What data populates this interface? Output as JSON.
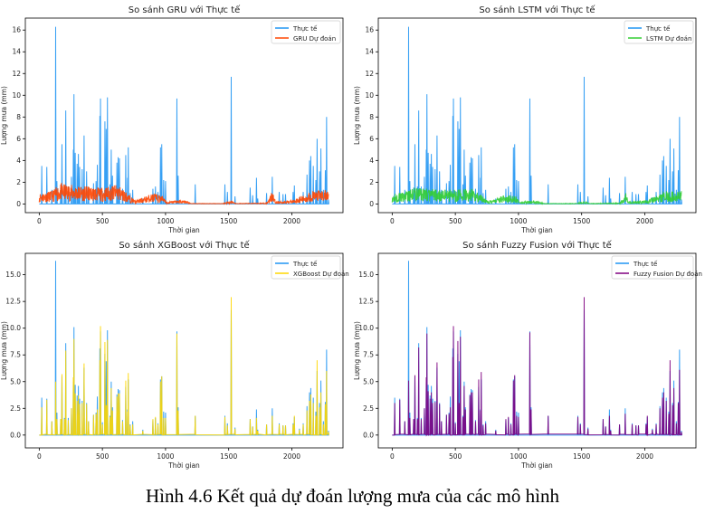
{
  "caption": "Hình 4.6 Kết quả dự đoán lượng mưa của các mô hình",
  "colors": {
    "actual": "#2196f3",
    "gru": "#ff4500",
    "lstm": "#32cd32",
    "xgboost": "#ffd700",
    "fuzzy": "#800080"
  },
  "chart_data": [
    {
      "type": "line",
      "title": "So sánh GRU với Thực tế",
      "xlabel": "Thời gian",
      "ylabel": "Lượng mưa (mm)",
      "xlim": [
        -110,
        2405
      ],
      "ylim": [
        -0.8,
        17.1
      ],
      "xticks": [
        0,
        500,
        1000,
        1500,
        2000
      ],
      "xtick_labels": [
        "0",
        "500",
        "1000",
        "1500",
        "2000"
      ],
      "yticks": [
        0,
        2,
        4,
        6,
        8,
        10,
        12,
        14,
        16
      ],
      "ytick_labels": [
        "0",
        "2",
        "4",
        "6",
        "8",
        "10",
        "12",
        "14",
        "16"
      ],
      "legend": [
        "Thực tế",
        "GRU Dự đoán"
      ],
      "legend_position": "top-right",
      "model": "gru",
      "pred_kind": "envelope"
    },
    {
      "type": "line",
      "title": "So sánh LSTM với Thực tế",
      "xlabel": "Thời gian",
      "ylabel": "Lượng mưa (mm)",
      "xlim": [
        -110,
        2405
      ],
      "ylim": [
        -0.8,
        17.1
      ],
      "xticks": [
        0,
        500,
        1000,
        1500,
        2000
      ],
      "xtick_labels": [
        "0",
        "500",
        "1000",
        "1500",
        "2000"
      ],
      "yticks": [
        0,
        2,
        4,
        6,
        8,
        10,
        12,
        14,
        16
      ],
      "ytick_labels": [
        "0",
        "2",
        "4",
        "6",
        "8",
        "10",
        "12",
        "14",
        "16"
      ],
      "legend": [
        "Thực tế",
        "LSTM Dự đoán"
      ],
      "legend_position": "top-right",
      "model": "lstm",
      "pred_kind": "envelope"
    },
    {
      "type": "line",
      "title": "So sánh XGBoost với Thực tế",
      "xlabel": "Thời gian",
      "ylabel": "Lượng mưa (mm)",
      "xlim": [
        -110,
        2405
      ],
      "ylim": [
        -1.2,
        17.0
      ],
      "xticks": [
        0,
        500,
        1000,
        1500,
        2000
      ],
      "xtick_labels": [
        "0",
        "500",
        "1000",
        "1500",
        "2000"
      ],
      "yticks": [
        0,
        2.5,
        5,
        7.5,
        10,
        12.5,
        15
      ],
      "ytick_labels": [
        "0.0",
        "2.5",
        "5.0",
        "7.5",
        "10.0",
        "12.5",
        "15.0"
      ],
      "legend": [
        "Thực tế",
        "XGBoost Dự đoán"
      ],
      "legend_position": "top-right",
      "model": "xgboost",
      "pred_kind": "spikes"
    },
    {
      "type": "line",
      "title": "So sánh Fuzzy Fusion với Thực tế",
      "xlabel": "Thời gian",
      "ylabel": "Lượng mưa (mm)",
      "xlim": [
        -110,
        2405
      ],
      "ylim": [
        -1.2,
        17.0
      ],
      "xticks": [
        0,
        500,
        1000,
        1500,
        2000
      ],
      "xtick_labels": [
        "0",
        "500",
        "1000",
        "1500",
        "2000"
      ],
      "yticks": [
        0,
        2.5,
        5,
        7.5,
        10,
        12.5,
        15
      ],
      "ytick_labels": [
        "0.0",
        "2.5",
        "5.0",
        "7.5",
        "10.0",
        "12.5",
        "15.0"
      ],
      "legend": [
        "Thực tế",
        "Fuzzy Fusion Dự đoán"
      ],
      "legend_position": "top-right",
      "model": "fuzzy",
      "pred_kind": "spikes"
    }
  ],
  "series": {
    "actual_x": [
      20,
      60,
      100,
      130,
      140,
      170,
      180,
      200,
      210,
      230,
      255,
      270,
      275,
      285,
      300,
      310,
      320,
      340,
      355,
      375,
      390,
      430,
      450,
      460,
      480,
      485,
      500,
      520,
      530,
      540,
      560,
      570,
      580,
      615,
      625,
      635,
      660,
      685,
      700,
      705,
      720,
      740,
      820,
      900,
      920,
      940,
      960,
      970,
      985,
      1000,
      1090,
      1100,
      1235,
      1470,
      1490,
      1520,
      1550,
      1670,
      1690,
      1720,
      1730,
      1800,
      1845,
      1900,
      1930,
      1950,
      2010,
      2020,
      2060,
      2090,
      2120,
      2140,
      2150,
      2170,
      2190,
      2200,
      2220,
      2230,
      2250,
      2265,
      2275,
      2290
    ],
    "actual_y": [
      3.5,
      3.4,
      1.3,
      16.3,
      2.1,
      1.5,
      5.5,
      1.6,
      8.6,
      1.6,
      2.5,
      5.0,
      10.1,
      4.7,
      3.7,
      4.6,
      3.4,
      3.2,
      6.3,
      3.0,
      1.3,
      1.9,
      2.1,
      3.6,
      8.1,
      9.7,
      1.2,
      7.6,
      6.9,
      9.8,
      1.8,
      5.0,
      2.6,
      3.8,
      4.3,
      4.2,
      1.4,
      4.5,
      2.4,
      5.2,
      1.0,
      1.3,
      0.5,
      1.4,
      1.6,
      1.1,
      5.2,
      5.5,
      2.2,
      2.1,
      9.7,
      2.6,
      1.8,
      1.8,
      1.1,
      11.7,
      0.7,
      1.5,
      0.8,
      2.4,
      0.5,
      1.0,
      2.5,
      1.1,
      0.9,
      0.9,
      1.1,
      1.7,
      0.6,
      1.1,
      2.7,
      4.0,
      4.4,
      3.5,
      2.2,
      6.0,
      3.0,
      5.1,
      1.3,
      3.1,
      8.0,
      0.4
    ],
    "xgboost_y": [
      2.6,
      3.3,
      1.3,
      5.0,
      1.5,
      1.5,
      5.7,
      1.5,
      7.9,
      1.4,
      2.5,
      5.4,
      9.0,
      3.9,
      3.2,
      3.7,
      2.9,
      3.0,
      6.7,
      2.9,
      1.3,
      1.9,
      2.0,
      2.4,
      7.0,
      10.2,
      1.0,
      8.7,
      2.8,
      8.9,
      1.7,
      4.4,
      2.3,
      3.6,
      3.9,
      3.9,
      1.3,
      5.1,
      2.2,
      5.8,
      0.9,
      1.0,
      0.4,
      1.5,
      1.7,
      1.0,
      5.0,
      5.5,
      1.6,
      1.6,
      9.5,
      2.3,
      1.8,
      1.7,
      0.9,
      12.9,
      0.6,
      1.5,
      0.8,
      1.6,
      0.4,
      1.0,
      1.8,
      1.0,
      0.9,
      0.9,
      1.0,
      1.8,
      0.5,
      1.0,
      2.3,
      3.2,
      3.8,
      3.0,
      1.8,
      7.0,
      2.6,
      4.0,
      1.0,
      2.9,
      6.0,
      0.3
    ],
    "fuzzy_y": [
      3.0,
      3.3,
      1.3,
      5.1,
      1.6,
      1.5,
      5.6,
      1.5,
      8.2,
      1.5,
      2.5,
      5.4,
      9.5,
      4.1,
      3.4,
      4.0,
      3.0,
      3.1,
      6.8,
      2.9,
      1.3,
      1.9,
      2.0,
      2.6,
      7.3,
      10.2,
      1.1,
      8.8,
      3.0,
      9.2,
      1.7,
      4.6,
      2.4,
      3.7,
      4.0,
      4.0,
      1.3,
      5.2,
      2.3,
      5.9,
      0.9,
      1.1,
      0.4,
      1.5,
      1.7,
      1.0,
      5.1,
      5.6,
      1.8,
      1.7,
      9.6,
      2.4,
      1.8,
      1.7,
      1.0,
      12.9,
      0.6,
      1.5,
      0.8,
      1.8,
      0.4,
      1.0,
      2.0,
      1.0,
      0.9,
      0.9,
      1.0,
      1.8,
      0.5,
      1.0,
      2.5,
      3.5,
      4.0,
      3.2,
      2.0,
      7.0,
      2.8,
      4.4,
      1.1,
      3.0,
      6.1,
      0.3
    ],
    "gru_envelope": [
      [
        0,
        1.0
      ],
      [
        100,
        1.2
      ],
      [
        170,
        1.9
      ],
      [
        300,
        1.7
      ],
      [
        500,
        1.5
      ],
      [
        620,
        1.8
      ],
      [
        700,
        1.0
      ],
      [
        760,
        0.3
      ],
      [
        800,
        0.5
      ],
      [
        900,
        1.0
      ],
      [
        990,
        0.7
      ],
      [
        1010,
        0.15
      ],
      [
        1080,
        0.35
      ],
      [
        1160,
        0.3
      ],
      [
        1200,
        0.05
      ],
      [
        1450,
        0.05
      ],
      [
        1520,
        0.3
      ],
      [
        1560,
        0.05
      ],
      [
        1800,
        0.1
      ],
      [
        1850,
        1.3
      ],
      [
        1870,
        0.2
      ],
      [
        2000,
        0.35
      ],
      [
        2100,
        0.8
      ],
      [
        2150,
        1.2
      ],
      [
        2290,
        1.3
      ]
    ],
    "lstm_envelope": [
      [
        0,
        0.9
      ],
      [
        100,
        1.1
      ],
      [
        170,
        1.5
      ],
      [
        300,
        1.4
      ],
      [
        500,
        1.3
      ],
      [
        620,
        1.5
      ],
      [
        700,
        0.9
      ],
      [
        760,
        0.25
      ],
      [
        800,
        0.4
      ],
      [
        900,
        0.9
      ],
      [
        990,
        0.6
      ],
      [
        1010,
        0.1
      ],
      [
        1080,
        0.3
      ],
      [
        1160,
        0.25
      ],
      [
        1200,
        0.05
      ],
      [
        1450,
        0.05
      ],
      [
        1520,
        0.25
      ],
      [
        1560,
        0.05
      ],
      [
        1800,
        0.1
      ],
      [
        1850,
        1.0
      ],
      [
        1870,
        0.2
      ],
      [
        2000,
        0.3
      ],
      [
        2100,
        0.8
      ],
      [
        2150,
        1.1
      ],
      [
        2290,
        1.2
      ]
    ]
  }
}
